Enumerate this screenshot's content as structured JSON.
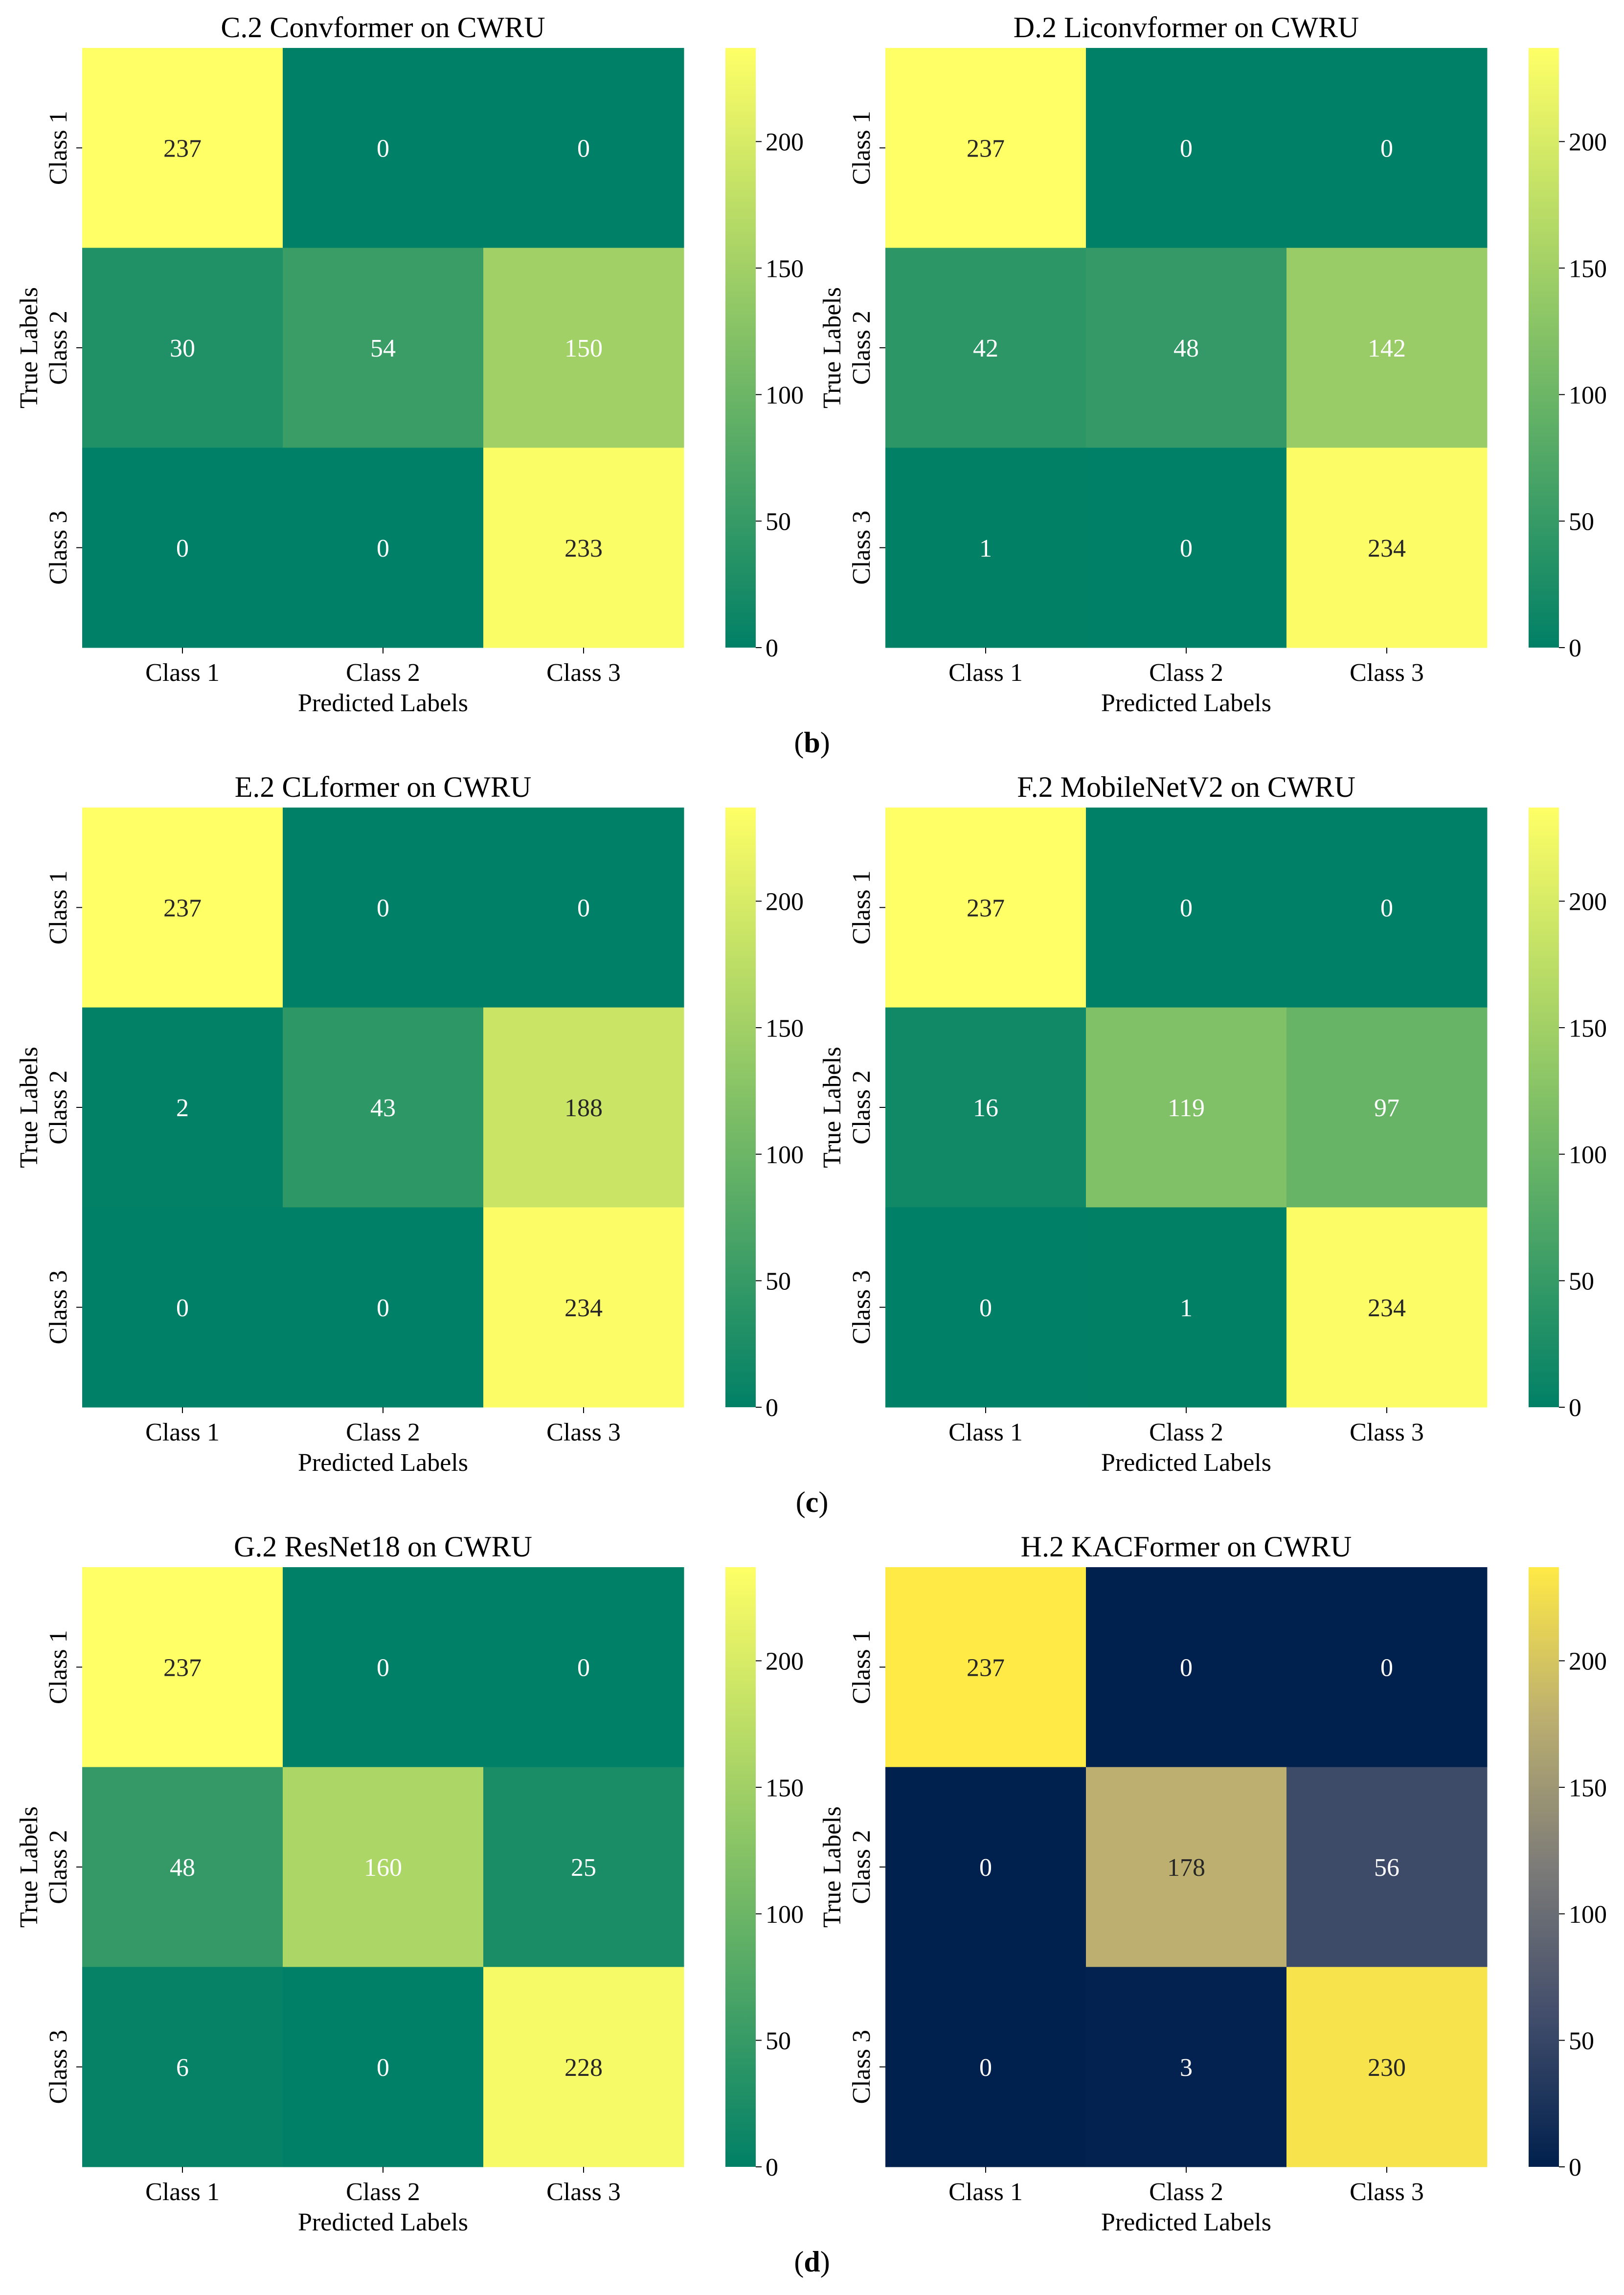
{
  "figure": {
    "panel_labels": [
      "(b)",
      "(c)",
      "(d)"
    ]
  },
  "chart_data": [
    {
      "type": "heatmap",
      "title": "C.2 Convformer on CWRU",
      "xlabel": "Predicted Labels",
      "ylabel": "True Labels",
      "x_categories": [
        "Class 1",
        "Class 2",
        "Class 3"
      ],
      "y_categories": [
        "Class 1",
        "Class 2",
        "Class 3"
      ],
      "values": [
        [
          237,
          0,
          0
        ],
        [
          30,
          54,
          150
        ],
        [
          0,
          0,
          233
        ]
      ],
      "colormap": "summer",
      "colorbar": {
        "min": 0,
        "max": 237,
        "ticks": [
          0,
          50,
          100,
          150,
          200
        ]
      }
    },
    {
      "type": "heatmap",
      "title": "D.2 Liconvformer on CWRU",
      "xlabel": "Predicted Labels",
      "ylabel": "True Labels",
      "x_categories": [
        "Class 1",
        "Class 2",
        "Class 3"
      ],
      "y_categories": [
        "Class 1",
        "Class 2",
        "Class 3"
      ],
      "values": [
        [
          237,
          0,
          0
        ],
        [
          42,
          48,
          142
        ],
        [
          1,
          0,
          234
        ]
      ],
      "colormap": "summer",
      "colorbar": {
        "min": 0,
        "max": 237,
        "ticks": [
          0,
          50,
          100,
          150,
          200
        ]
      }
    },
    {
      "type": "heatmap",
      "title": "E.2 CLformer on CWRU",
      "xlabel": "Predicted Labels",
      "ylabel": "True Labels",
      "x_categories": [
        "Class 1",
        "Class 2",
        "Class 3"
      ],
      "y_categories": [
        "Class 1",
        "Class 2",
        "Class 3"
      ],
      "values": [
        [
          237,
          0,
          0
        ],
        [
          2,
          43,
          188
        ],
        [
          0,
          0,
          234
        ]
      ],
      "colormap": "summer",
      "colorbar": {
        "min": 0,
        "max": 237,
        "ticks": [
          0,
          50,
          100,
          150,
          200
        ]
      }
    },
    {
      "type": "heatmap",
      "title": "F.2 MobileNetV2 on CWRU",
      "xlabel": "Predicted Labels",
      "ylabel": "True Labels",
      "x_categories": [
        "Class 1",
        "Class 2",
        "Class 3"
      ],
      "y_categories": [
        "Class 1",
        "Class 2",
        "Class 3"
      ],
      "values": [
        [
          237,
          0,
          0
        ],
        [
          16,
          119,
          97
        ],
        [
          0,
          1,
          234
        ]
      ],
      "colormap": "summer",
      "colorbar": {
        "min": 0,
        "max": 237,
        "ticks": [
          0,
          50,
          100,
          150,
          200
        ]
      }
    },
    {
      "type": "heatmap",
      "title": "G.2 ResNet18 on CWRU",
      "xlabel": "Predicted Labels",
      "ylabel": "True Labels",
      "x_categories": [
        "Class 1",
        "Class 2",
        "Class 3"
      ],
      "y_categories": [
        "Class 1",
        "Class 2",
        "Class 3"
      ],
      "values": [
        [
          237,
          0,
          0
        ],
        [
          48,
          160,
          25
        ],
        [
          6,
          0,
          228
        ]
      ],
      "colormap": "summer",
      "colorbar": {
        "min": 0,
        "max": 237,
        "ticks": [
          0,
          50,
          100,
          150,
          200
        ]
      }
    },
    {
      "type": "heatmap",
      "title": "H.2 KACFormer on CWRU",
      "xlabel": "Predicted Labels",
      "ylabel": "True Labels",
      "x_categories": [
        "Class 1",
        "Class 2",
        "Class 3"
      ],
      "y_categories": [
        "Class 1",
        "Class 2",
        "Class 3"
      ],
      "values": [
        [
          237,
          0,
          0
        ],
        [
          0,
          178,
          56
        ],
        [
          0,
          3,
          230
        ]
      ],
      "colormap": "cividis",
      "colorbar": {
        "min": 0,
        "max": 237,
        "ticks": [
          0,
          50,
          100,
          150,
          200
        ]
      }
    }
  ]
}
